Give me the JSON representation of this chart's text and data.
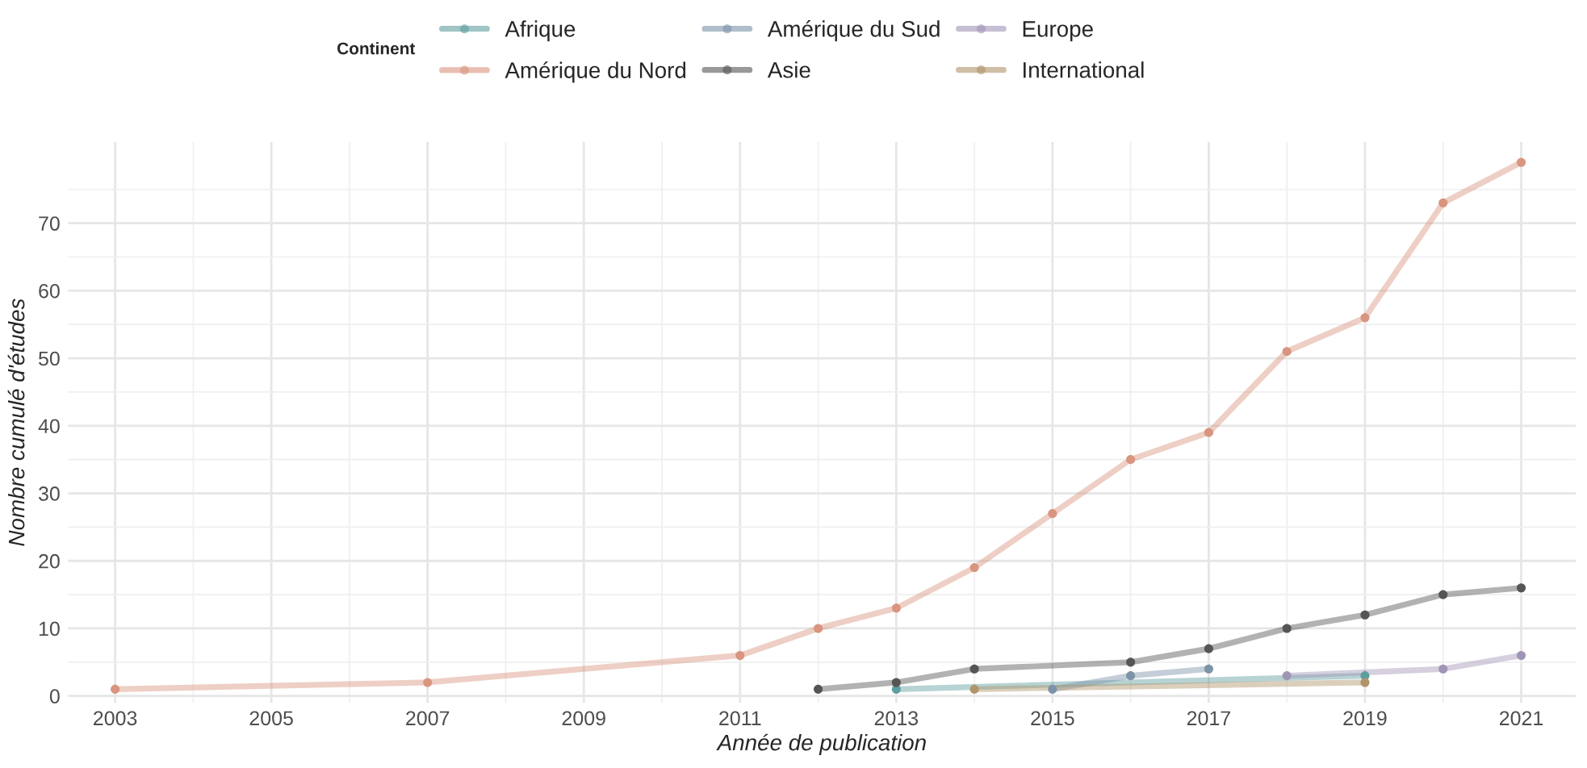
{
  "chart_data": {
    "type": "line",
    "xlabel": "Année de publication",
    "ylabel": "Nombre cumulé d'études",
    "legend_title": "Continent",
    "xlim": [
      2002.4,
      2021.7
    ],
    "xticks": [
      2003,
      2005,
      2007,
      2009,
      2011,
      2013,
      2015,
      2017,
      2019,
      2021
    ],
    "ylim": [
      -1,
      82
    ],
    "yticks": [
      0,
      10,
      20,
      30,
      40,
      50,
      60,
      70
    ],
    "grid": true,
    "legend": "top",
    "marker": "circle",
    "line_style": "solid",
    "series": [
      {
        "name": "Afrique",
        "color": "#5f9ea0",
        "x": [
          2013,
          2019
        ],
        "values": [
          1,
          3
        ]
      },
      {
        "name": "Amérique du Nord",
        "color": "#d9957f",
        "x": [
          2003,
          2007,
          2011,
          2012,
          2013,
          2014,
          2015,
          2016,
          2017,
          2018,
          2019,
          2020,
          2021
        ],
        "values": [
          1,
          2,
          6,
          10,
          13,
          19,
          27,
          35,
          39,
          51,
          56,
          73,
          79
        ]
      },
      {
        "name": "Amérique du Sud",
        "color": "#7d93a8",
        "x": [
          2015,
          2016,
          2017
        ],
        "values": [
          1,
          3,
          4
        ]
      },
      {
        "name": "Asie",
        "color": "#555555",
        "x": [
          2012,
          2013,
          2014,
          2016,
          2017,
          2018,
          2019,
          2020,
          2021
        ],
        "values": [
          1,
          2,
          4,
          5,
          7,
          10,
          12,
          15,
          16
        ]
      },
      {
        "name": "Europe",
        "color": "#a195b5",
        "x": [
          2018,
          2020,
          2021
        ],
        "values": [
          3,
          4,
          6
        ]
      },
      {
        "name": "International",
        "color": "#b0956b",
        "x": [
          2014,
          2019
        ],
        "values": [
          1,
          2
        ]
      }
    ]
  }
}
